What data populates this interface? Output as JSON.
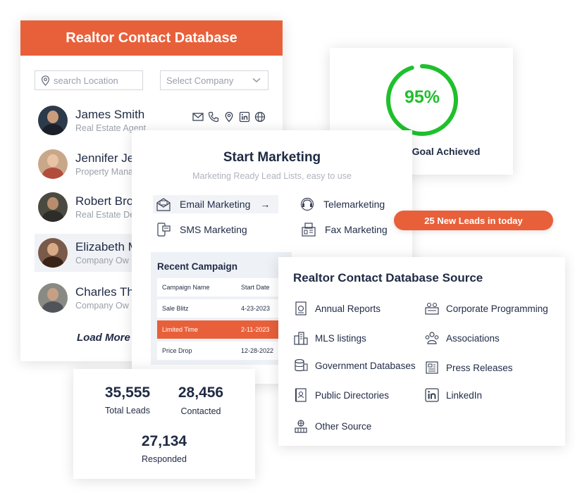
{
  "contacts_card": {
    "title": "Realtor Contact Database",
    "location_placeholder": "search Location",
    "company_placeholder": "Select Company",
    "contacts": [
      {
        "name": "James Smith",
        "role": "Real Estate Agent"
      },
      {
        "name": "Jennifer Je",
        "role": "Property Mana"
      },
      {
        "name": "Robert Bro",
        "role": "Real Estate De"
      },
      {
        "name": "Elizabeth M",
        "role": "Company Ow"
      },
      {
        "name": "Charles Th",
        "role": "Company Ow"
      }
    ],
    "contact_icons": [
      "mail-icon",
      "phone-icon",
      "location-pin-icon",
      "linkedin-icon",
      "globe-icon"
    ],
    "load_more": "Load More"
  },
  "goal_card": {
    "percent_label": "95%",
    "progress": 0.95,
    "label": "Marketing Goal Achieved",
    "ring_color": "#1ec02b"
  },
  "marketing_card": {
    "title": "Start Marketing",
    "subtitle": "Marketing Ready Lead Lists, easy to use",
    "channels": [
      {
        "label": "Email Marketing",
        "icon": "email-marketing-icon"
      },
      {
        "label": "SMS Marketing",
        "icon": "sms-icon"
      },
      {
        "label": "Telemarketing",
        "icon": "telemarketing-icon"
      },
      {
        "label": "Fax Marketing",
        "icon": "fax-icon"
      }
    ],
    "campaign": {
      "title": "Recent Campaign",
      "columns": [
        "Campaign Name",
        "Start Date"
      ],
      "rows": [
        {
          "name": "Sale Blitz",
          "date": "4-23-2023"
        },
        {
          "name": "Limited Time",
          "date": "2-11-2023"
        },
        {
          "name": "Price Drop",
          "date": "12-28-2022"
        }
      ]
    }
  },
  "stats_card": {
    "total_leads": {
      "value": "35,555",
      "label": "Total Leads"
    },
    "contacted": {
      "value": "28,456",
      "label": "Contacted"
    },
    "responded": {
      "value": "27,134",
      "label": "Responded"
    }
  },
  "leads_badge": "25 New Leads in today",
  "sources_card": {
    "title": "Realtor Contact Database Source",
    "items": [
      "Annual Reports",
      "Corporate Programming",
      "MLS listings",
      "Associations",
      "Government Databases",
      "Press Releases",
      "Public Directories",
      "LinkedIn",
      "Other Source"
    ]
  },
  "colors": {
    "accent": "#e8603a",
    "text": "#1f2a44",
    "muted": "#9aa0aa",
    "success": "#1ec02b"
  }
}
